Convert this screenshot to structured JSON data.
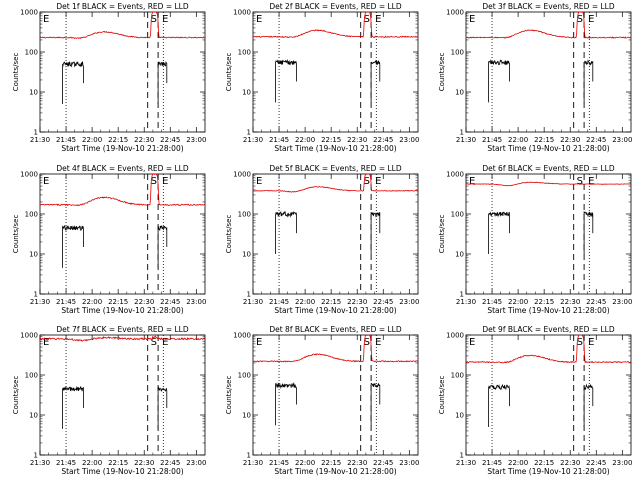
{
  "figure": {
    "rows": 3,
    "cols": 3,
    "colors": {
      "events": "#000000",
      "lld": "#e00000",
      "axes": "#000000",
      "background": "#ffffff"
    }
  },
  "chart_data": [
    {
      "type": "line",
      "detector": "1f",
      "title": "Det 1f BLACK = Events, RED = LLD",
      "xlabel": "Start Time (19-Nov-10 21:28:00)",
      "ylabel": "Counts/sec",
      "xlim": [
        "21:30",
        "23:05"
      ],
      "ylim": [
        1,
        1000
      ],
      "yscale": "log",
      "xticks": [
        "21:30",
        "21:45",
        "22:00",
        "22:15",
        "22:30",
        "22:45",
        "23:00"
      ],
      "yticks": [
        "1",
        "10",
        "100",
        "1000"
      ],
      "series": [
        {
          "name": "RED = LLD",
          "color": "#e00000",
          "baseline": 230,
          "bump": 90,
          "peak": 1000,
          "noise": 0.03
        },
        {
          "name": "BLACK = Events",
          "color": "#000000",
          "level": 50,
          "segments": [
            [
              "21:43",
              "21:55"
            ],
            [
              "22:38",
              "22:43"
            ]
          ]
        }
      ],
      "markers": {
        "dotted": [
          "21:45",
          "22:41"
        ],
        "dashed": [
          "22:32",
          "22:38"
        ],
        "labels": [
          "E",
          "S",
          "E"
        ]
      }
    },
    {
      "type": "line",
      "detector": "2f",
      "title": "Det 2f BLACK = Events, RED = LLD",
      "xlabel": "Start Time (19-Nov-10 21:28:00)",
      "ylabel": "Counts/sec",
      "xlim": [
        "21:30",
        "23:05"
      ],
      "ylim": [
        1,
        1000
      ],
      "yscale": "log",
      "xticks": [
        "21:30",
        "21:45",
        "22:00",
        "22:15",
        "22:30",
        "22:45",
        "23:00"
      ],
      "yticks": [
        "1",
        "10",
        "100",
        "1000"
      ],
      "series": [
        {
          "name": "RED = LLD",
          "color": "#e00000",
          "baseline": 240,
          "bump": 110,
          "peak": 1000,
          "noise": 0.03
        },
        {
          "name": "BLACK = Events",
          "color": "#000000",
          "level": 55,
          "segments": [
            [
              "21:43",
              "21:55"
            ],
            [
              "22:38",
              "22:43"
            ]
          ]
        }
      ],
      "markers": {
        "dotted": [
          "21:45",
          "22:41"
        ],
        "dashed": [
          "22:32",
          "22:38"
        ],
        "labels": [
          "E",
          "S",
          "E"
        ]
      }
    },
    {
      "type": "line",
      "detector": "3f",
      "title": "Det 3f BLACK = Events, RED = LLD",
      "xlabel": "Start Time (19-Nov-10 21:28:00)",
      "ylabel": "Counts/sec",
      "xlim": [
        "21:30",
        "23:05"
      ],
      "ylim": [
        1,
        1000
      ],
      "yscale": "log",
      "xticks": [
        "21:30",
        "21:45",
        "22:00",
        "22:15",
        "22:30",
        "22:45",
        "23:00"
      ],
      "yticks": [
        "1",
        "10",
        "100",
        "1000"
      ],
      "series": [
        {
          "name": "RED = LLD",
          "color": "#e00000",
          "baseline": 230,
          "bump": 120,
          "peak": 1000,
          "noise": 0.03
        },
        {
          "name": "BLACK = Events",
          "color": "#000000",
          "level": 55,
          "segments": [
            [
              "21:43",
              "21:55"
            ],
            [
              "22:38",
              "22:43"
            ]
          ]
        }
      ],
      "markers": {
        "dotted": [
          "21:45",
          "22:41"
        ],
        "dashed": [
          "22:32",
          "22:38"
        ],
        "labels": [
          "E",
          "S",
          "E"
        ]
      }
    },
    {
      "type": "line",
      "detector": "4f",
      "title": "Det 4f BLACK = Events, RED = LLD",
      "xlabel": "Start Time (19-Nov-10 21:28:00)",
      "ylabel": "Counts/sec",
      "xlim": [
        "21:30",
        "23:05"
      ],
      "ylim": [
        1,
        1000
      ],
      "yscale": "log",
      "xticks": [
        "21:30",
        "21:45",
        "22:00",
        "22:15",
        "22:30",
        "22:45",
        "23:00"
      ],
      "yticks": [
        "1",
        "10",
        "100",
        "1000"
      ],
      "series": [
        {
          "name": "RED = LLD",
          "color": "#e00000",
          "baseline": 170,
          "bump": 90,
          "peak": 1000,
          "noise": 0.035
        },
        {
          "name": "BLACK = Events",
          "color": "#000000",
          "level": 45,
          "segments": [
            [
              "21:43",
              "21:55"
            ],
            [
              "22:38",
              "22:43"
            ]
          ]
        }
      ],
      "markers": {
        "dotted": [
          "21:45",
          "22:41"
        ],
        "dashed": [
          "22:32",
          "22:38"
        ],
        "labels": [
          "E",
          "S",
          "E"
        ]
      }
    },
    {
      "type": "line",
      "detector": "5f",
      "title": "Det 5f BLACK = Events, RED = LLD",
      "xlabel": "Start Time (19-Nov-10 21:28:00)",
      "ylabel": "Counts/sec",
      "xlim": [
        "21:30",
        "23:05"
      ],
      "ylim": [
        1,
        1000
      ],
      "yscale": "log",
      "xticks": [
        "21:30",
        "21:45",
        "22:00",
        "22:15",
        "22:30",
        "22:45",
        "23:00"
      ],
      "yticks": [
        "1",
        "10",
        "100",
        "1000"
      ],
      "series": [
        {
          "name": "RED = LLD",
          "color": "#e00000",
          "baseline": 380,
          "bump": 100,
          "peak": 1000,
          "noise": 0.02
        },
        {
          "name": "BLACK = Events",
          "color": "#000000",
          "level": 100,
          "segments": [
            [
              "21:43",
              "21:55"
            ],
            [
              "22:38",
              "22:43"
            ]
          ]
        }
      ],
      "markers": {
        "dotted": [
          "21:45",
          "22:41"
        ],
        "dashed": [
          "22:32",
          "22:38"
        ],
        "labels": [
          "E",
          "S",
          "E"
        ]
      }
    },
    {
      "type": "line",
      "detector": "6f",
      "title": "Det 6f BLACK = Events, RED = LLD",
      "xlabel": "Start Time (19-Nov-10 21:28:00)",
      "ylabel": "Counts/sec",
      "xlim": [
        "21:30",
        "23:05"
      ],
      "ylim": [
        1,
        1000
      ],
      "yscale": "log",
      "xticks": [
        "21:30",
        "21:45",
        "22:00",
        "22:15",
        "22:30",
        "22:45",
        "23:00"
      ],
      "yticks": [
        "1",
        "10",
        "100",
        "1000"
      ],
      "series": [
        {
          "name": "RED = LLD",
          "color": "#e00000",
          "baseline": 560,
          "bump": 60,
          "peak": 560,
          "noise": 0.015
        },
        {
          "name": "BLACK = Events",
          "color": "#000000",
          "level": 100,
          "segments": [
            [
              "21:43",
              "21:55"
            ],
            [
              "22:38",
              "22:43"
            ]
          ]
        }
      ],
      "markers": {
        "dotted": [
          "21:45",
          "22:41"
        ],
        "dashed": [
          "22:32",
          "22:38"
        ],
        "labels": [
          "E",
          "S",
          "E"
        ]
      }
    },
    {
      "type": "line",
      "detector": "7f",
      "title": "Det 7f BLACK = Events, RED = LLD",
      "xlabel": "Start Time (19-Nov-10 21:28:00)",
      "ylabel": "Counts/sec",
      "xlim": [
        "21:30",
        "23:05"
      ],
      "ylim": [
        1,
        1000
      ],
      "yscale": "log",
      "xticks": [
        "21:30",
        "21:45",
        "22:00",
        "22:15",
        "22:30",
        "22:45",
        "23:00"
      ],
      "yticks": [
        "1",
        "10",
        "100",
        "1000"
      ],
      "series": [
        {
          "name": "RED = LLD",
          "color": "#e00000",
          "baseline": 800,
          "bump": 60,
          "peak": 900,
          "noise": 0.05
        },
        {
          "name": "BLACK = Events",
          "color": "#000000",
          "level": 45,
          "segments": [
            [
              "21:43",
              "21:55"
            ],
            [
              "22:38",
              "22:43"
            ]
          ]
        }
      ],
      "markers": {
        "dotted": [
          "21:45",
          "22:41"
        ],
        "dashed": [
          "22:32",
          "22:38"
        ],
        "labels": [
          "E",
          "S",
          "E"
        ]
      }
    },
    {
      "type": "line",
      "detector": "8f",
      "title": "Det 8f BLACK = Events, RED = LLD",
      "xlabel": "Start Time (19-Nov-10 21:28:00)",
      "ylabel": "Counts/sec",
      "xlim": [
        "21:30",
        "23:05"
      ],
      "ylim": [
        1,
        1000
      ],
      "yscale": "log",
      "xticks": [
        "21:30",
        "21:45",
        "22:00",
        "22:15",
        "22:30",
        "22:45",
        "23:00"
      ],
      "yticks": [
        "1",
        "10",
        "100",
        "1000"
      ],
      "series": [
        {
          "name": "RED = LLD",
          "color": "#e00000",
          "baseline": 220,
          "bump": 110,
          "peak": 1000,
          "noise": 0.03
        },
        {
          "name": "BLACK = Events",
          "color": "#000000",
          "level": 55,
          "segments": [
            [
              "21:43",
              "21:55"
            ],
            [
              "22:38",
              "22:43"
            ]
          ]
        }
      ],
      "markers": {
        "dotted": [
          "21:45",
          "22:41"
        ],
        "dashed": [
          "22:32",
          "22:38"
        ],
        "labels": [
          "E",
          "S",
          "E"
        ]
      }
    },
    {
      "type": "line",
      "detector": "9f",
      "title": "Det 9f BLACK = Events, RED = LLD",
      "xlabel": "Start Time (19-Nov-10 21:28:00)",
      "ylabel": "Counts/sec",
      "xlim": [
        "21:30",
        "23:05"
      ],
      "ylim": [
        1,
        1000
      ],
      "yscale": "log",
      "xticks": [
        "21:30",
        "21:45",
        "22:00",
        "22:15",
        "22:30",
        "22:45",
        "23:00"
      ],
      "yticks": [
        "1",
        "10",
        "100",
        "1000"
      ],
      "series": [
        {
          "name": "RED = LLD",
          "color": "#e00000",
          "baseline": 210,
          "bump": 100,
          "peak": 1000,
          "noise": 0.03
        },
        {
          "name": "BLACK = Events",
          "color": "#000000",
          "level": 50,
          "segments": [
            [
              "21:43",
              "21:55"
            ],
            [
              "22:38",
              "22:43"
            ]
          ]
        }
      ],
      "markers": {
        "dotted": [
          "21:45",
          "22:41"
        ],
        "dashed": [
          "22:32",
          "22:38"
        ],
        "labels": [
          "E",
          "S",
          "E"
        ]
      }
    }
  ]
}
